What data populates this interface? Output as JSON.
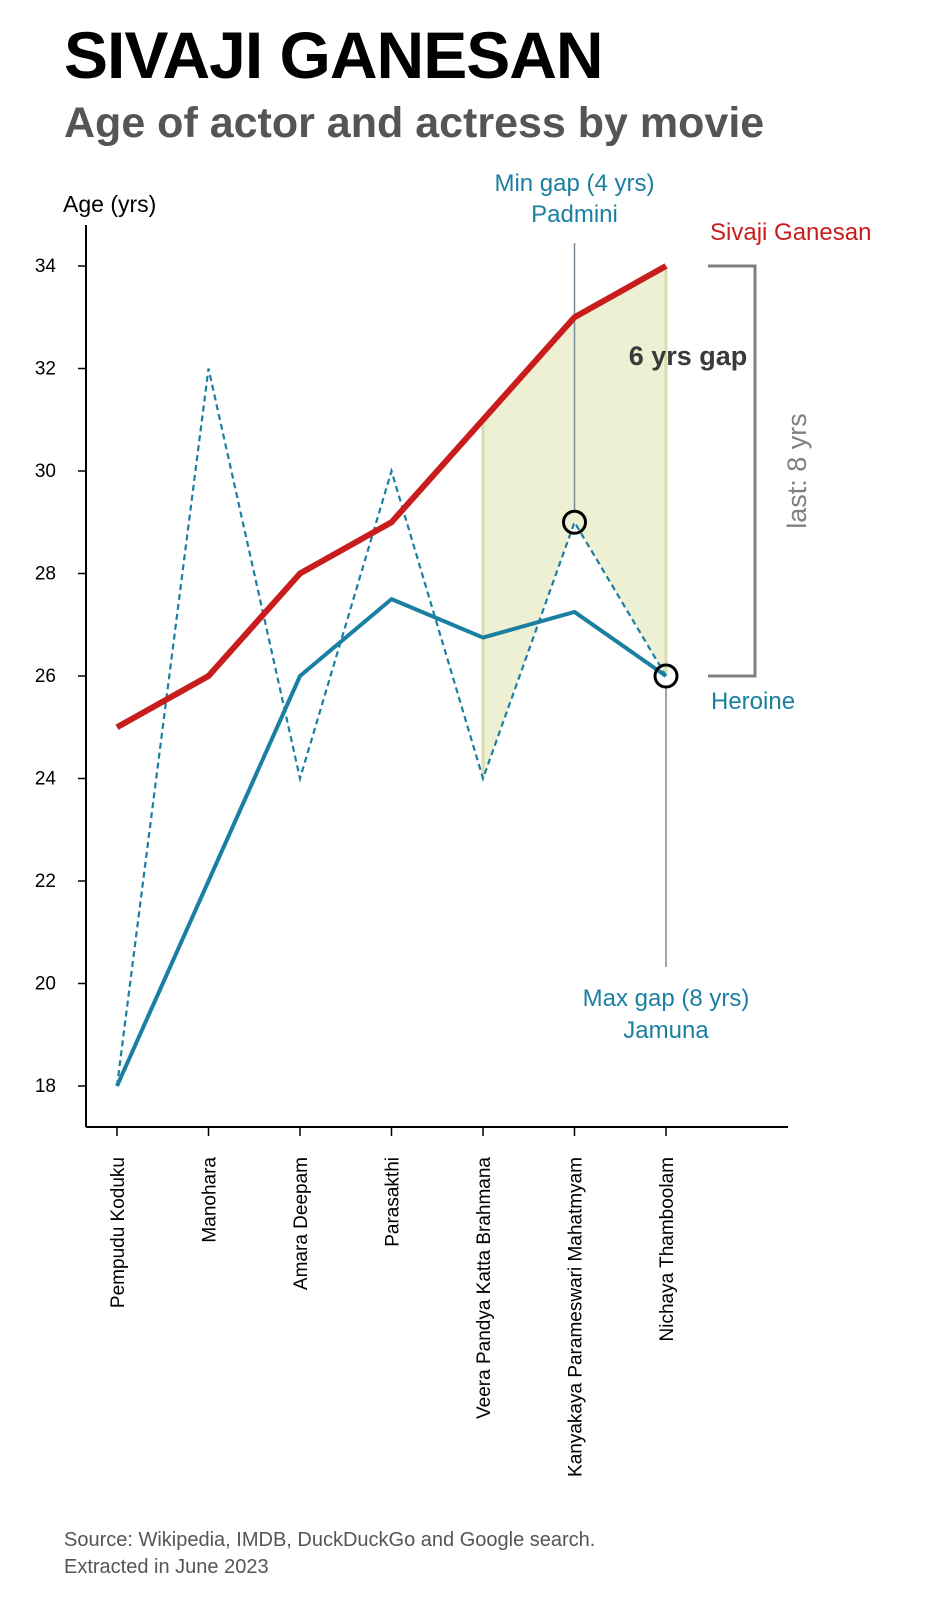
{
  "title": "SIVAJI GANESAN",
  "subtitle": "Age of actor and actress by movie",
  "source": {
    "line1": "Source: Wikipedia, IMDB, DuckDuckGo and Google search.",
    "line2": "Extracted in June 2023"
  },
  "colors": {
    "actor": "#c91d1d",
    "heroine": "#1a7fa0",
    "gap_fill": "#eef0d4",
    "bracket": "#808080",
    "guide": "#7a8c99",
    "gap_text": "#3a3a3a"
  },
  "chart_data": {
    "type": "line",
    "ylabel": "Age (yrs)",
    "ylim": [
      17.2,
      34.8
    ],
    "yticks": [
      18,
      20,
      22,
      24,
      26,
      28,
      30,
      32,
      34
    ],
    "categories": [
      "Pempudu Koduku",
      "Manohara",
      "Amara Deepam",
      "Parasakthi",
      "Veera Pandya Katta Brahmana",
      "Kanyakaya Parameswari Mahatmyam",
      "Nichaya Thamboolam"
    ],
    "series": [
      {
        "name": "Sivaji Ganesan",
        "style": "solid-thick",
        "values": [
          25,
          26,
          28,
          29,
          31,
          33,
          34
        ]
      },
      {
        "name": "Heroine",
        "style": "solid",
        "values": [
          18,
          22,
          26,
          27.5,
          26.75,
          27.25,
          26
        ]
      },
      {
        "style": "dashed",
        "values": [
          18,
          32,
          24,
          30,
          24,
          29,
          26
        ]
      }
    ],
    "gap_band": {
      "from_index": 4,
      "to_index": 6
    },
    "annotations": {
      "gap_label": "6 yrs gap",
      "last_label": "last: 8 yrs",
      "min_gap": {
        "index": 5,
        "value": 29,
        "line1": "Min gap (4 yrs)",
        "line2": "Padmini"
      },
      "max_gap": {
        "index": 6,
        "value": 26,
        "line1": "Max gap (8 yrs)",
        "line2": "Jamuna"
      }
    }
  }
}
